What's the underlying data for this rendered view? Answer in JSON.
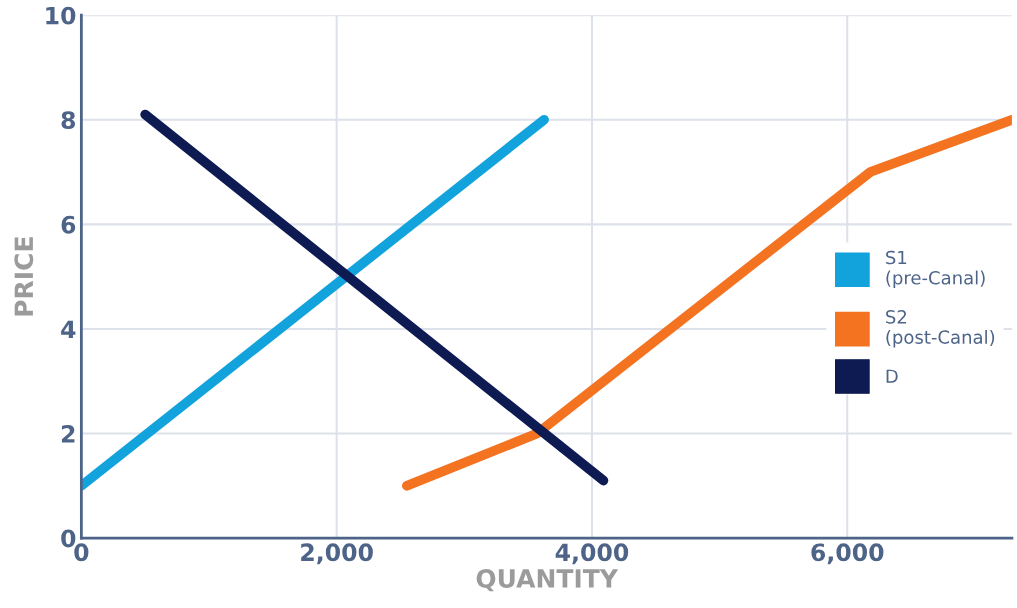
{
  "chart_data": {
    "type": "line",
    "xlabel": "QUANTITY",
    "ylabel": "PRICE",
    "series": [
      {
        "name": "S1\n(pre-Canal)",
        "color": "#12a3dd",
        "x": [
          0,
          3625
        ],
        "values": [
          1,
          8
        ]
      },
      {
        "name": "S2\n(post-Canal)",
        "color": "#f47321",
        "x": [
          2550,
          3570,
          6180,
          7290
        ],
        "values": [
          1,
          2,
          7,
          8
        ]
      },
      {
        "name": "D",
        "color": "#0e1a52",
        "x": [
          500,
          4090
        ],
        "values": [
          8.1,
          1.1
        ]
      }
    ],
    "xlim": [
      0,
      7290
    ],
    "ylim": [
      0,
      10
    ],
    "xticks": [
      0,
      {
        "value": 2000,
        "label": "2,000"
      },
      {
        "value": 4000,
        "label": "4,000"
      },
      {
        "value": 6000,
        "label": "6,000"
      }
    ],
    "yticks": [
      0,
      2,
      4,
      6,
      8,
      10
    ],
    "grid": true,
    "legend": "right",
    "marker": "none",
    "line_style": "solid"
  }
}
